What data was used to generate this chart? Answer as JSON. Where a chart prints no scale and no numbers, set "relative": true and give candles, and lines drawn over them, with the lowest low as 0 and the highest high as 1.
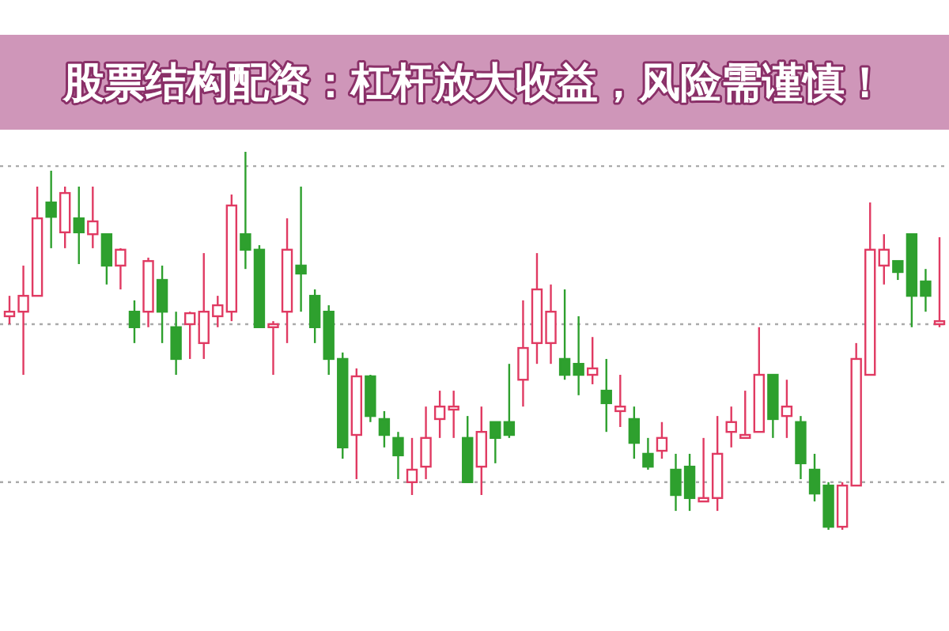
{
  "chart_data": {
    "type": "candlestick",
    "relative": true,
    "title": "股票结构配资：杠杆放大收益，风险需谨慎！",
    "categories": [
      null,
      null,
      null,
      null,
      null,
      null,
      null,
      null,
      null,
      null,
      null,
      null,
      null,
      null,
      null,
      null,
      null,
      null,
      null,
      null,
      null,
      null,
      null,
      null,
      null,
      null,
      null,
      null,
      null,
      null,
      null,
      null,
      null,
      null,
      null,
      null,
      null,
      null,
      null,
      null,
      null,
      null,
      null,
      null,
      null,
      null,
      null,
      null,
      null,
      null,
      null,
      null,
      null,
      null,
      null,
      null,
      null,
      null,
      null,
      null,
      null,
      null,
      null,
      null,
      null,
      null,
      null,
      null
    ],
    "ohlc": [
      [
        0.565,
        0.619,
        0.544,
        0.577
      ],
      [
        0.577,
        0.699,
        0.41,
        0.619
      ],
      [
        0.619,
        0.908,
        0.619,
        0.824
      ],
      [
        0.866,
        0.95,
        0.745,
        0.828
      ],
      [
        0.787,
        0.908,
        0.745,
        0.891
      ],
      [
        0.824,
        0.908,
        0.703,
        0.787
      ],
      [
        0.782,
        0.908,
        0.745,
        0.816
      ],
      [
        0.782,
        0.782,
        0.649,
        0.699
      ],
      [
        0.699,
        0.745,
        0.636,
        0.741
      ],
      [
        0.577,
        0.607,
        0.494,
        0.536
      ],
      [
        0.577,
        0.72,
        0.536,
        0.711
      ],
      [
        0.661,
        0.699,
        0.494,
        0.577
      ],
      [
        0.536,
        0.577,
        0.41,
        0.452
      ],
      [
        0.544,
        0.577,
        0.452,
        0.573
      ],
      [
        0.494,
        0.732,
        0.452,
        0.577
      ],
      [
        0.565,
        0.619,
        0.536,
        0.594
      ],
      [
        0.577,
        0.887,
        0.552,
        0.858
      ],
      [
        0.782,
        1,
        0.69,
        0.741
      ],
      [
        0.741,
        0.753,
        0.536,
        0.536
      ],
      [
        0.536,
        0.552,
        0.41,
        0.544
      ],
      [
        0.577,
        0.824,
        0.494,
        0.741
      ],
      [
        0.699,
        0.908,
        0.577,
        0.678
      ],
      [
        0.619,
        0.636,
        0.494,
        0.536
      ],
      [
        0.577,
        0.594,
        0.41,
        0.452
      ],
      [
        0.452,
        0.469,
        0.188,
        0.218
      ],
      [
        0.251,
        0.427,
        0.134,
        0.406
      ],
      [
        0.406,
        0.41,
        0.285,
        0.301
      ],
      [
        0.293,
        0.314,
        0.218,
        0.251
      ],
      [
        0.243,
        0.259,
        0.134,
        0.197
      ],
      [
        0.126,
        0.243,
        0.092,
        0.159
      ],
      [
        0.167,
        0.326,
        0.134,
        0.243
      ],
      [
        0.293,
        0.368,
        0.243,
        0.326
      ],
      [
        0.318,
        0.368,
        0.243,
        0.326
      ],
      [
        0.243,
        0.301,
        0.126,
        0.126
      ],
      [
        0.167,
        0.326,
        0.092,
        0.259
      ],
      [
        0.285,
        0.285,
        0.176,
        0.243
      ],
      [
        0.285,
        0.439,
        0.243,
        0.251
      ],
      [
        0.397,
        0.607,
        0.326,
        0.481
      ],
      [
        0.494,
        0.732,
        0.439,
        0.636
      ],
      [
        0.494,
        0.649,
        0.439,
        0.577
      ],
      [
        0.452,
        0.636,
        0.397,
        0.41
      ],
      [
        0.439,
        0.565,
        0.356,
        0.41
      ],
      [
        0.41,
        0.51,
        0.385,
        0.427
      ],
      [
        0.368,
        0.452,
        0.259,
        0.335
      ],
      [
        0.314,
        0.41,
        0.272,
        0.326
      ],
      [
        0.293,
        0.326,
        0.188,
        0.23
      ],
      [
        0.201,
        0.243,
        0.159,
        0.167
      ],
      [
        0.209,
        0.285,
        0.188,
        0.243
      ],
      [
        0.159,
        0.201,
        0.05,
        0.092
      ],
      [
        0.167,
        0.201,
        0.05,
        0.084
      ],
      [
        0.075,
        0.243,
        0.075,
        0.084
      ],
      [
        0.084,
        0.301,
        0.05,
        0.201
      ],
      [
        0.259,
        0.326,
        0.218,
        0.285
      ],
      [
        0.243,
        0.368,
        0.243,
        0.251
      ],
      [
        0.259,
        0.536,
        0.259,
        0.41
      ],
      [
        0.41,
        0.41,
        0.243,
        0.293
      ],
      [
        0.301,
        0.397,
        0.243,
        0.326
      ],
      [
        0.285,
        0.301,
        0.134,
        0.176
      ],
      [
        0.159,
        0.201,
        0.075,
        0.096
      ],
      [
        0.117,
        0.126,
        0,
        0.008
      ],
      [
        0.008,
        0.126,
        0,
        0.117
      ],
      [
        0.117,
        0.494,
        0.117,
        0.452
      ],
      [
        0.41,
        0.866,
        0.41,
        0.741
      ],
      [
        0.699,
        0.782,
        0.649,
        0.741
      ],
      [
        0.711,
        0.711,
        0.661,
        0.682
      ],
      [
        0.782,
        0.782,
        0.536,
        0.619
      ],
      [
        0.657,
        0.69,
        0.577,
        0.619
      ],
      [
        0.544,
        0.774,
        0.536,
        0.552
      ]
    ],
    "colors": [
      "#e03a62",
      "#e03a62",
      "#e03a62",
      "#2ea02e",
      "#e03a62",
      "#2ea02e",
      "#e03a62",
      "#2ea02e",
      "#e03a62",
      "#2ea02e",
      "#e03a62",
      "#2ea02e",
      "#2ea02e",
      "#e03a62",
      "#e03a62",
      "#e03a62",
      "#e03a62",
      "#2ea02e",
      "#2ea02e",
      "#e03a62",
      "#e03a62",
      "#2ea02e",
      "#2ea02e",
      "#2ea02e",
      "#2ea02e",
      "#e03a62",
      "#2ea02e",
      "#2ea02e",
      "#2ea02e",
      "#e03a62",
      "#e03a62",
      "#e03a62",
      "#e03a62",
      "#2ea02e",
      "#e03a62",
      "#2ea02e",
      "#2ea02e",
      "#e03a62",
      "#e03a62",
      "#e03a62",
      "#2ea02e",
      "#2ea02e",
      "#e03a62",
      "#2ea02e",
      "#e03a62",
      "#2ea02e",
      "#2ea02e",
      "#e03a62",
      "#2ea02e",
      "#2ea02e",
      "#e03a62",
      "#e03a62",
      "#e03a62",
      "#e03a62",
      "#e03a62",
      "#2ea02e",
      "#e03a62",
      "#2ea02e",
      "#2ea02e",
      "#2ea02e",
      "#e03a62",
      "#e03a62",
      "#e03a62",
      "#e03a62",
      "#2ea02e",
      "#2ea02e",
      "#2ea02e",
      "#e03a62"
    ],
    "ref_lines": [
      {
        "axis": "y",
        "value": 0.962,
        "line_style": "dotted",
        "color": "#aaaaaa"
      },
      {
        "axis": "y",
        "value": 0.544,
        "line_style": "dotted",
        "color": "#aaaaaa"
      },
      {
        "axis": "y",
        "value": 0.126,
        "line_style": "dotted",
        "color": "#aaaaaa"
      }
    ]
  }
}
